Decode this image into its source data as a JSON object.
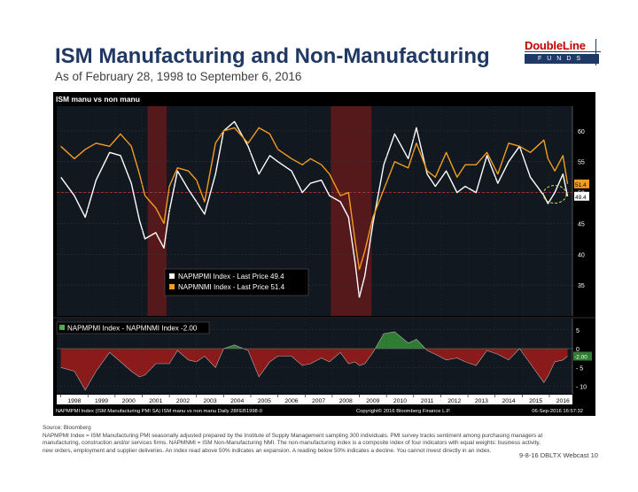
{
  "header": {
    "title": "ISM Manufacturing and Non-Manufacturing",
    "subtitle": "As of February 28, 1998 to September 6, 2016"
  },
  "logo": {
    "brand": "DoubleLine",
    "sub": "FUNDS"
  },
  "chart_data": [
    {
      "type": "line",
      "title": "ISM manu vs non manu",
      "ylim": [
        30,
        64
      ],
      "y_ticks": [
        35,
        40,
        45,
        50,
        55,
        60
      ],
      "reference_line": 50,
      "recession_shading": [
        [
          2001.2,
          2001.9
        ],
        [
          2007.95,
          2009.45
        ]
      ],
      "series": [
        {
          "name": "NAPMPMI Index - Last Price 49.4",
          "color": "#ffffff",
          "last_value_label": "49.4",
          "points": [
            [
              1998.0,
              52.5
            ],
            [
              1998.5,
              49.5
            ],
            [
              1998.9,
              46.0
            ],
            [
              1999.3,
              52.0
            ],
            [
              1999.8,
              56.5
            ],
            [
              2000.2,
              56.0
            ],
            [
              2000.6,
              51.5
            ],
            [
              2000.9,
              45.5
            ],
            [
              2001.1,
              42.5
            ],
            [
              2001.5,
              43.5
            ],
            [
              2001.8,
              41.0
            ],
            [
              2002.0,
              47.0
            ],
            [
              2002.3,
              53.5
            ],
            [
              2002.7,
              50.5
            ],
            [
              2003.0,
              48.5
            ],
            [
              2003.3,
              46.5
            ],
            [
              2003.7,
              53.0
            ],
            [
              2004.0,
              60.0
            ],
            [
              2004.4,
              61.5
            ],
            [
              2004.9,
              57.5
            ],
            [
              2005.3,
              53.0
            ],
            [
              2005.7,
              56.0
            ],
            [
              2006.0,
              55.0
            ],
            [
              2006.5,
              53.5
            ],
            [
              2006.9,
              50.0
            ],
            [
              2007.2,
              51.5
            ],
            [
              2007.6,
              52.0
            ],
            [
              2007.9,
              49.5
            ],
            [
              2008.3,
              48.5
            ],
            [
              2008.6,
              46.0
            ],
            [
              2008.85,
              38.5
            ],
            [
              2009.0,
              33.0
            ],
            [
              2009.2,
              36.5
            ],
            [
              2009.5,
              45.0
            ],
            [
              2009.9,
              54.5
            ],
            [
              2010.3,
              59.5
            ],
            [
              2010.8,
              55.5
            ],
            [
              2011.1,
              60.5
            ],
            [
              2011.5,
              53.0
            ],
            [
              2011.8,
              51.0
            ],
            [
              2012.2,
              53.5
            ],
            [
              2012.6,
              50.0
            ],
            [
              2012.9,
              51.0
            ],
            [
              2013.3,
              50.0
            ],
            [
              2013.7,
              56.0
            ],
            [
              2014.1,
              51.5
            ],
            [
              2014.5,
              55.0
            ],
            [
              2014.9,
              57.5
            ],
            [
              2015.3,
              52.5
            ],
            [
              2015.8,
              49.5
            ],
            [
              2015.95,
              48.2
            ],
            [
              2016.2,
              50.0
            ],
            [
              2016.5,
              53.0
            ],
            [
              2016.67,
              49.4
            ]
          ]
        },
        {
          "name": "NAPMNMI Index - Last Price 51.4",
          "color": "#f39c1f",
          "last_value_label": "51.4",
          "points": [
            [
              1998.0,
              57.5
            ],
            [
              1998.5,
              55.5
            ],
            [
              1998.9,
              57.0
            ],
            [
              1999.3,
              58.0
            ],
            [
              1999.8,
              57.5
            ],
            [
              2000.2,
              59.5
            ],
            [
              2000.6,
              57.5
            ],
            [
              2000.9,
              53.0
            ],
            [
              2001.1,
              49.5
            ],
            [
              2001.5,
              47.5
            ],
            [
              2001.8,
              45.0
            ],
            [
              2002.0,
              51.0
            ],
            [
              2002.3,
              54.0
            ],
            [
              2002.7,
              53.5
            ],
            [
              2003.0,
              52.0
            ],
            [
              2003.3,
              48.5
            ],
            [
              2003.7,
              58.0
            ],
            [
              2004.0,
              60.0
            ],
            [
              2004.4,
              60.5
            ],
            [
              2004.9,
              58.0
            ],
            [
              2005.3,
              60.5
            ],
            [
              2005.7,
              59.5
            ],
            [
              2006.0,
              57.0
            ],
            [
              2006.5,
              55.5
            ],
            [
              2006.9,
              54.5
            ],
            [
              2007.2,
              55.5
            ],
            [
              2007.6,
              54.5
            ],
            [
              2007.9,
              53.0
            ],
            [
              2008.3,
              49.5
            ],
            [
              2008.6,
              50.0
            ],
            [
              2008.85,
              42.0
            ],
            [
              2009.0,
              37.5
            ],
            [
              2009.2,
              40.5
            ],
            [
              2009.5,
              46.0
            ],
            [
              2009.9,
              50.5
            ],
            [
              2010.3,
              55.0
            ],
            [
              2010.8,
              54.0
            ],
            [
              2011.1,
              58.0
            ],
            [
              2011.5,
              53.5
            ],
            [
              2011.8,
              52.5
            ],
            [
              2012.2,
              56.5
            ],
            [
              2012.6,
              52.5
            ],
            [
              2012.9,
              54.5
            ],
            [
              2013.3,
              54.5
            ],
            [
              2013.7,
              56.5
            ],
            [
              2014.1,
              53.0
            ],
            [
              2014.5,
              58.0
            ],
            [
              2014.9,
              57.5
            ],
            [
              2015.3,
              56.5
            ],
            [
              2015.8,
              58.5
            ],
            [
              2015.95,
              55.5
            ],
            [
              2016.2,
              53.5
            ],
            [
              2016.5,
              56.0
            ],
            [
              2016.67,
              51.4
            ]
          ]
        }
      ],
      "legend": [
        "NAPMPMI Index - Last Price 49.4",
        "NAPMNMI Index - Last Price 51.4"
      ]
    },
    {
      "type": "area",
      "title": "NAPMPMI Index - NAPMNMI Index -2.00",
      "ylim": [
        -12,
        8
      ],
      "y_ticks": [
        -10,
        -5,
        0,
        5
      ],
      "last_value_label": "-2.00",
      "positive_color": "#2e7d32",
      "negative_color": "#8b1a1a",
      "points": [
        [
          1998.0,
          -5.0
        ],
        [
          1998.5,
          -6.0
        ],
        [
          1998.9,
          -11.0
        ],
        [
          1999.3,
          -6.0
        ],
        [
          1999.8,
          -1.0
        ],
        [
          2000.2,
          -3.5
        ],
        [
          2000.6,
          -6.0
        ],
        [
          2000.9,
          -7.5
        ],
        [
          2001.1,
          -7.0
        ],
        [
          2001.5,
          -4.0
        ],
        [
          2001.8,
          -4.0
        ],
        [
          2002.0,
          -4.0
        ],
        [
          2002.3,
          -0.5
        ],
        [
          2002.7,
          -3.0
        ],
        [
          2003.0,
          -3.5
        ],
        [
          2003.3,
          -2.0
        ],
        [
          2003.7,
          -5.0
        ],
        [
          2004.0,
          0.0
        ],
        [
          2004.4,
          1.0
        ],
        [
          2004.9,
          -0.5
        ],
        [
          2005.3,
          -7.5
        ],
        [
          2005.7,
          -3.5
        ],
        [
          2006.0,
          -2.0
        ],
        [
          2006.5,
          -2.0
        ],
        [
          2006.9,
          -4.5
        ],
        [
          2007.2,
          -4.0
        ],
        [
          2007.6,
          -2.5
        ],
        [
          2007.9,
          -3.5
        ],
        [
          2008.3,
          -1.0
        ],
        [
          2008.6,
          -4.0
        ],
        [
          2008.85,
          -3.5
        ],
        [
          2009.0,
          -4.5
        ],
        [
          2009.2,
          -4.0
        ],
        [
          2009.5,
          -1.0
        ],
        [
          2009.9,
          4.0
        ],
        [
          2010.3,
          4.5
        ],
        [
          2010.8,
          1.5
        ],
        [
          2011.1,
          2.5
        ],
        [
          2011.5,
          -0.5
        ],
        [
          2011.8,
          -1.5
        ],
        [
          2012.2,
          -3.0
        ],
        [
          2012.6,
          -2.5
        ],
        [
          2012.9,
          -3.5
        ],
        [
          2013.3,
          -4.5
        ],
        [
          2013.7,
          -0.5
        ],
        [
          2014.1,
          -1.5
        ],
        [
          2014.5,
          -3.0
        ],
        [
          2014.9,
          0.0
        ],
        [
          2015.3,
          -4.0
        ],
        [
          2015.8,
          -9.0
        ],
        [
          2015.95,
          -7.3
        ],
        [
          2016.2,
          -3.5
        ],
        [
          2016.5,
          -3.0
        ],
        [
          2016.67,
          -2.0
        ]
      ],
      "legend": [
        "NAPMPMI Index - NAPMNMI Index -2.00"
      ]
    }
  ],
  "x_axis": {
    "range": [
      1997.85,
      2016.85
    ],
    "tick_labels": [
      "1998",
      "1999",
      "2000",
      "2001",
      "2002",
      "2003",
      "2004",
      "2005",
      "2006",
      "2007",
      "2008",
      "2009",
      "2010",
      "2011",
      "2012",
      "2013",
      "2014",
      "2015",
      "2016"
    ]
  },
  "bloomberg_footer": {
    "left": "NAPMPMI Index (ISM Manufacturing PMI SA) ISM manu vs non manu  Daily 28FEB1998-0",
    "center": "Copyright© 2016 Bloomberg Finance L.P.",
    "right": "06-Sep-2016 16:57:32"
  },
  "source": {
    "label": "Source: Bloomberg",
    "text": "NAPMPMI Index = ISM Manufacturing PMI seasonally adjusted prepared by the Institute of Supply Management sampling 300 individuals. PMI survey tracks sentiment among purchasing managers at manufacturing, construction and/or services firms. NAPMNMI = ISM Non-Manufacturing NMI. The non-manufacturing index is a composite index of four indicators with equal weights: business activity, new orders, employment and supplier deliveries. An index read above 50% indicates an expansion. A reading below 50% indicates a decline. You cannot invest directly in an index."
  },
  "footer": {
    "page": "9-8-16 DBLTX Webcast 10"
  }
}
